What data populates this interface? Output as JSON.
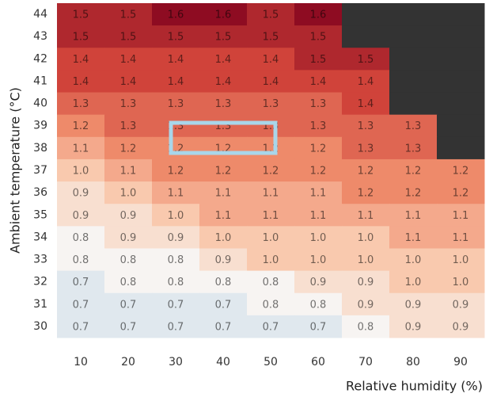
{
  "chart_data": {
    "type": "heatmap",
    "x_label": "Relative humidity (%)",
    "y_label": "Ambient temperature (°C)",
    "x": [
      10,
      20,
      30,
      40,
      50,
      60,
      70,
      80,
      90
    ],
    "y": [
      44,
      43,
      42,
      41,
      40,
      39,
      38,
      37,
      36,
      35,
      34,
      33,
      32,
      31,
      30
    ],
    "values": [
      [
        1.5,
        1.5,
        1.6,
        1.6,
        1.5,
        1.6,
        null,
        null,
        null
      ],
      [
        1.5,
        1.5,
        1.5,
        1.5,
        1.5,
        1.5,
        null,
        null,
        null
      ],
      [
        1.4,
        1.4,
        1.4,
        1.4,
        1.4,
        1.5,
        1.5,
        null,
        null
      ],
      [
        1.4,
        1.4,
        1.4,
        1.4,
        1.4,
        1.4,
        1.4,
        null,
        null
      ],
      [
        1.3,
        1.3,
        1.3,
        1.3,
        1.3,
        1.3,
        1.4,
        null,
        null
      ],
      [
        1.2,
        1.3,
        1.3,
        1.3,
        1.3,
        1.3,
        1.3,
        1.3,
        null
      ],
      [
        1.1,
        1.2,
        1.2,
        1.2,
        1.2,
        1.2,
        1.3,
        1.3,
        null
      ],
      [
        1,
        1.1,
        1.2,
        1.2,
        1.2,
        1.2,
        1.2,
        1.2,
        1.2
      ],
      [
        0.9,
        1,
        1.1,
        1.1,
        1.1,
        1.1,
        1.2,
        1.2,
        1.2
      ],
      [
        0.9,
        0.9,
        1,
        1.1,
        1.1,
        1.1,
        1.1,
        1.1,
        1.1
      ],
      [
        0.8,
        0.9,
        0.9,
        1,
        1,
        1,
        1,
        1.1,
        1.1
      ],
      [
        0.8,
        0.8,
        0.8,
        0.9,
        1,
        1,
        1,
        1,
        1
      ],
      [
        0.7,
        0.8,
        0.8,
        0.8,
        0.8,
        0.9,
        0.9,
        1,
        1
      ],
      [
        0.7,
        0.7,
        0.7,
        0.7,
        0.8,
        0.8,
        0.9,
        0.9,
        0.9
      ],
      [
        0.7,
        0.7,
        0.7,
        0.7,
        0.7,
        0.7,
        0.8,
        0.9,
        0.9
      ]
    ],
    "value_labels": [
      [
        "1.5",
        "1.5",
        "1.6",
        "1.6",
        "1.5",
        "1.6",
        null,
        null,
        null
      ],
      [
        "1.5",
        "1.5",
        "1.5",
        "1.5",
        "1.5",
        "1.5",
        null,
        null,
        null
      ],
      [
        "1.4",
        "1.4",
        "1.4",
        "1.4",
        "1.4",
        "1.5",
        "1.5",
        null,
        null
      ],
      [
        "1.4",
        "1.4",
        "1.4",
        "1.4",
        "1.4",
        "1.4",
        "1.4",
        null,
        null
      ],
      [
        "1.3",
        "1.3",
        "1.3",
        "1.3",
        "1.3",
        "1.3",
        "1.4",
        null,
        null
      ],
      [
        "1.2",
        "1.3",
        "1.3",
        "1.3",
        "1.3",
        "1.3",
        "1.3",
        "1.3",
        null
      ],
      [
        "1.1",
        "1.2",
        "1.2",
        "1.2",
        "1.2",
        "1.2",
        "1.3",
        "1.3",
        null
      ],
      [
        "1.0",
        "1.1",
        "1.2",
        "1.2",
        "1.2",
        "1.2",
        "1.2",
        "1.2",
        "1.2"
      ],
      [
        "0.9",
        "1.0",
        "1.1",
        "1.1",
        "1.1",
        "1.1",
        "1.2",
        "1.2",
        "1.2"
      ],
      [
        "0.9",
        "0.9",
        "1.0",
        "1.1",
        "1.1",
        "1.1",
        "1.1",
        "1.1",
        "1.1"
      ],
      [
        "0.8",
        "0.9",
        "0.9",
        "1.0",
        "1.0",
        "1.0",
        "1.0",
        "1.1",
        "1.1"
      ],
      [
        "0.8",
        "0.8",
        "0.8",
        "0.9",
        "1.0",
        "1.0",
        "1.0",
        "1.0",
        "1.0"
      ],
      [
        "0.7",
        "0.8",
        "0.8",
        "0.8",
        "0.8",
        "0.9",
        "0.9",
        "1.0",
        "1.0"
      ],
      [
        "0.7",
        "0.7",
        "0.7",
        "0.7",
        "0.8",
        "0.8",
        "0.9",
        "0.9",
        "0.9"
      ],
      [
        "0.7",
        "0.7",
        "0.7",
        "0.7",
        "0.7",
        "0.7",
        "0.8",
        "0.9",
        "0.9"
      ]
    ],
    "colormap": [
      "#c9dcea",
      "#f7f4f2",
      "#f9c9ae",
      "#ee8a6a",
      "#d0433a",
      "#8e0c22"
    ],
    "clim": [
      0.6,
      1.6
    ],
    "missing_color": "#333333"
  }
}
